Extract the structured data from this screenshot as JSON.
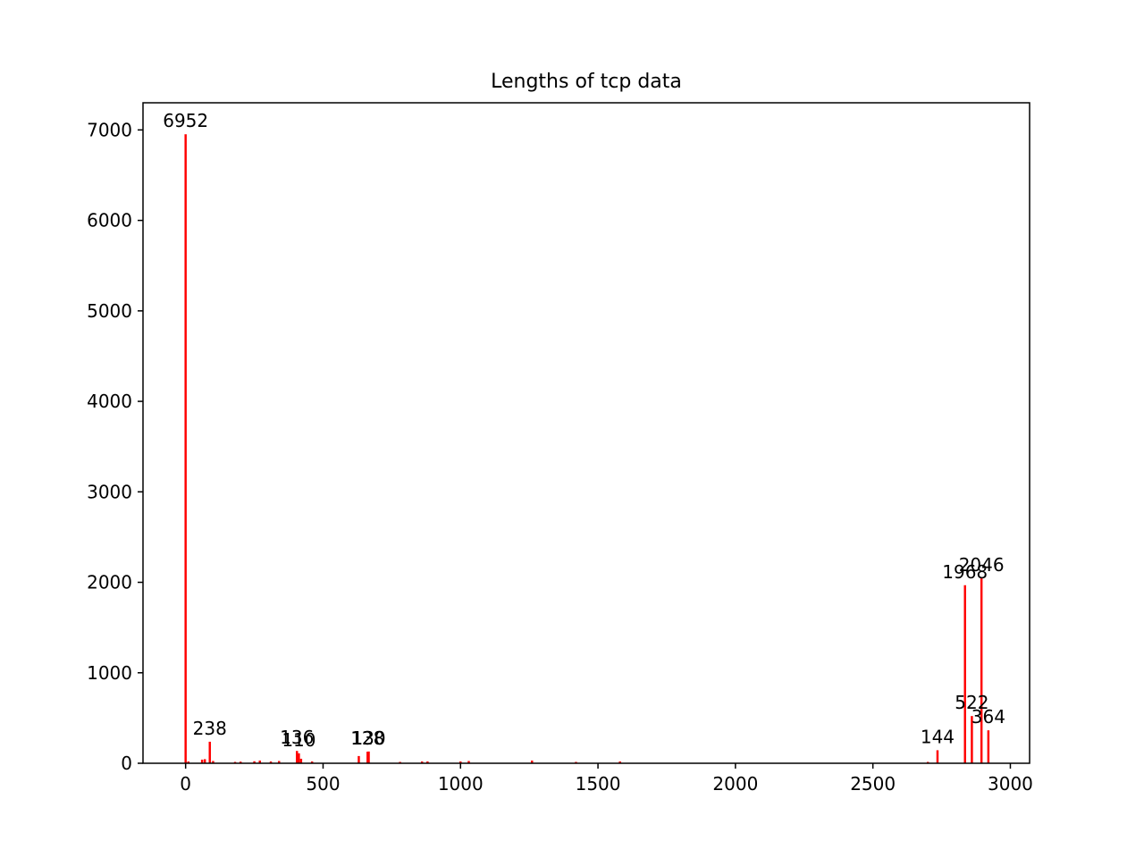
{
  "chart_data": {
    "type": "bar",
    "title": "Lengths of tcp data",
    "xlabel": "",
    "ylabel": "",
    "xlim": [
      -155,
      3070
    ],
    "ylim": [
      0,
      7300
    ],
    "xticks": [
      0,
      500,
      1000,
      1500,
      2000,
      2500,
      3000
    ],
    "yticks": [
      0,
      1000,
      2000,
      3000,
      4000,
      5000,
      6000,
      7000
    ],
    "bar_color": "#ff0000",
    "bar_width": 8,
    "grid": false,
    "legend": "none",
    "bars": [
      {
        "x": 0,
        "value": 6952,
        "label": "6952"
      },
      {
        "x": 10,
        "value": 20
      },
      {
        "x": 60,
        "value": 40
      },
      {
        "x": 70,
        "value": 45
      },
      {
        "x": 88,
        "value": 238,
        "label": "238"
      },
      {
        "x": 100,
        "value": 25
      },
      {
        "x": 180,
        "value": 15
      },
      {
        "x": 200,
        "value": 18
      },
      {
        "x": 250,
        "value": 22
      },
      {
        "x": 270,
        "value": 30
      },
      {
        "x": 310,
        "value": 20
      },
      {
        "x": 340,
        "value": 25
      },
      {
        "x": 405,
        "value": 136,
        "label": "136"
      },
      {
        "x": 412,
        "value": 110,
        "label": "110"
      },
      {
        "x": 420,
        "value": 50
      },
      {
        "x": 460,
        "value": 20
      },
      {
        "x": 630,
        "value": 80
      },
      {
        "x": 662,
        "value": 128,
        "label": "128"
      },
      {
        "x": 666,
        "value": 130,
        "label": "130"
      },
      {
        "x": 780,
        "value": 15
      },
      {
        "x": 860,
        "value": 20
      },
      {
        "x": 880,
        "value": 20
      },
      {
        "x": 1000,
        "value": 20
      },
      {
        "x": 1030,
        "value": 25
      },
      {
        "x": 1260,
        "value": 30
      },
      {
        "x": 1420,
        "value": 15
      },
      {
        "x": 1580,
        "value": 20
      },
      {
        "x": 2700,
        "value": 15
      },
      {
        "x": 2735,
        "value": 144,
        "label": "144"
      },
      {
        "x": 2835,
        "value": 1968,
        "label": "1968"
      },
      {
        "x": 2860,
        "value": 522,
        "label": "522"
      },
      {
        "x": 2895,
        "value": 2046,
        "label": "2046"
      },
      {
        "x": 2920,
        "value": 364,
        "label": "364"
      }
    ]
  }
}
